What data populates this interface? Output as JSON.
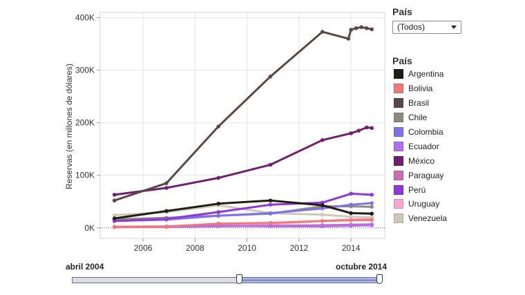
{
  "chart_data": {
    "type": "line",
    "title": "",
    "xlabel": "",
    "ylabel": "Reservas (en millones de dólares)",
    "xlim": [
      2004.35,
      2015.3
    ],
    "ylim": [
      -20000,
      410000
    ],
    "x_ticks": [
      2006,
      2008,
      2010,
      2012,
      2014
    ],
    "y_ticks": [
      0,
      100000,
      200000,
      300000,
      400000
    ],
    "y_tick_labels": [
      "0K",
      "100K",
      "200K",
      "300K",
      "400K"
    ],
    "grid": true,
    "legend_position": "right",
    "series": [
      {
        "name": "Venezuela",
        "color": "#cfc7b8",
        "x": [
          2004.9,
          2006.9,
          2008.9,
          2010.9,
          2012.9,
          2014.0,
          2014.8
        ],
        "values": [
          24000,
          30000,
          43000,
          28000,
          25000,
          21000,
          20000
        ]
      },
      {
        "name": "Uruguay",
        "color": "#f9a8cd",
        "x": [
          2004.9,
          2006.9,
          2008.9,
          2010.9,
          2012.9,
          2014.0,
          2014.8
        ],
        "values": [
          2500,
          3000,
          6000,
          7500,
          13000,
          16000,
          17000
        ]
      },
      {
        "name": "Chile",
        "color": "#908a7c",
        "x": [
          2004.9,
          2006.9,
          2008.9,
          2010.9,
          2012.9,
          2014.0,
          2014.8
        ],
        "values": [
          16000,
          19000,
          23000,
          27000,
          41000,
          41000,
          40000
        ]
      },
      {
        "name": "Colombia",
        "color": "#7e72e8",
        "x": [
          2004.9,
          2006.9,
          2008.9,
          2010.9,
          2012.9,
          2014.0,
          2014.8
        ],
        "values": [
          13000,
          15500,
          23000,
          28000,
          37000,
          44000,
          47000
        ]
      },
      {
        "name": "Paraguay",
        "color": "#c86fb2",
        "x": [
          2004.9,
          2006.9,
          2008.9,
          2010.9,
          2012.9,
          2014.0,
          2014.8
        ],
        "values": [
          1200,
          1700,
          3000,
          4000,
          5000,
          6000,
          6500
        ]
      },
      {
        "name": "Ecuador",
        "color": "#b66ef0",
        "x": [
          2004.9,
          2006.9,
          2008.9,
          2010.9,
          2012.9,
          2014.0,
          2014.8
        ],
        "values": [
          1500,
          2000,
          4000,
          3000,
          3000,
          4000,
          5000
        ]
      },
      {
        "name": "Bolivia",
        "color": "#f07878",
        "x": [
          2004.9,
          2006.9,
          2008.9,
          2010.9,
          2012.9,
          2014.0,
          2014.8
        ],
        "values": [
          1500,
          2500,
          8000,
          9500,
          13000,
          14500,
          15000
        ]
      },
      {
        "name": "Perú",
        "color": "#8e38d8",
        "x": [
          2004.9,
          2006.9,
          2008.9,
          2010.9,
          2012.9,
          2014.0,
          2014.8
        ],
        "values": [
          13000,
          17000,
          30000,
          44000,
          48000,
          65000,
          63000
        ]
      },
      {
        "name": "Argentina",
        "color": "#1e1f14",
        "x": [
          2004.9,
          2006.9,
          2008.9,
          2010.9,
          2012.9,
          2014.0,
          2014.8
        ],
        "values": [
          18000,
          32000,
          46000,
          52000,
          43000,
          28000,
          27000
        ]
      },
      {
        "name": "México",
        "color": "#6e1f6e",
        "x": [
          2004.9,
          2006.9,
          2008.9,
          2010.9,
          2012.9,
          2014.0,
          2014.3,
          2014.6,
          2014.8
        ],
        "values": [
          63000,
          76000,
          95000,
          120000,
          167000,
          180000,
          185000,
          191000,
          190000
        ]
      },
      {
        "name": "Brasil",
        "color": "#5a4847",
        "x": [
          2004.9,
          2006.9,
          2008.9,
          2010.9,
          2012.9,
          2013.9,
          2014.0,
          2014.2,
          2014.4,
          2014.6,
          2014.8
        ],
        "values": [
          52000,
          85000,
          193000,
          288000,
          373000,
          360000,
          377000,
          380000,
          382000,
          380000,
          378000
        ]
      }
    ]
  },
  "filter": {
    "title": "País",
    "selected": "(Todos)"
  },
  "legend": {
    "title": "País",
    "items": [
      {
        "label": "Argentina",
        "color": "#1e1f14"
      },
      {
        "label": "Bolivia",
        "color": "#f07878"
      },
      {
        "label": "Brasil",
        "color": "#5a4847"
      },
      {
        "label": "Chile",
        "color": "#908a7c"
      },
      {
        "label": "Colombia",
        "color": "#7e72e8"
      },
      {
        "label": "Ecuador",
        "color": "#b66ef0"
      },
      {
        "label": "México",
        "color": "#6e1f6e"
      },
      {
        "label": "Paraguay",
        "color": "#c86fb2"
      },
      {
        "label": "Perú",
        "color": "#8e38d8"
      },
      {
        "label": "Uruguay",
        "color": "#f9a8cd"
      },
      {
        "label": "Venezuela",
        "color": "#cfc7b8"
      }
    ]
  },
  "range": {
    "start_label": "abril 2004",
    "end_label": "octubre 2014"
  }
}
